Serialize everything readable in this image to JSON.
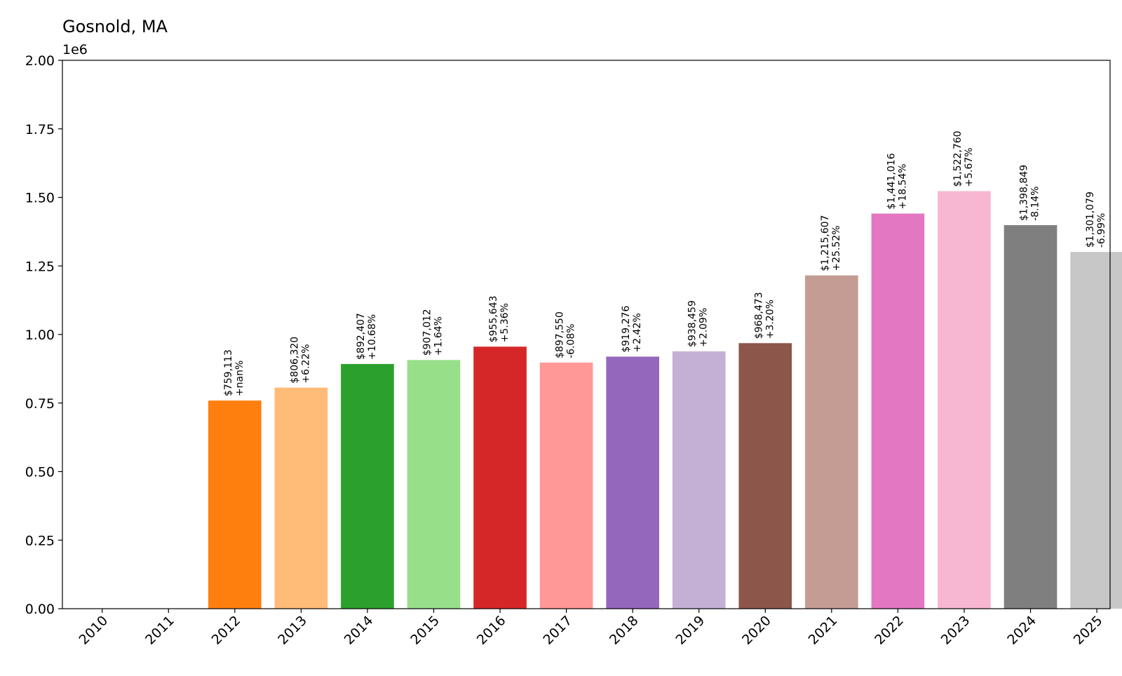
{
  "chart_data": {
    "type": "bar",
    "title": "Gosnold, MA",
    "xlabel": "",
    "ylabel": "",
    "y_offset_label": "1e6",
    "ylim": [
      0,
      2000000
    ],
    "y_ticks": [
      0,
      250000,
      500000,
      750000,
      1000000,
      1250000,
      1500000,
      1750000,
      2000000
    ],
    "y_tick_labels": [
      "0.00",
      "0.25",
      "0.50",
      "0.75",
      "1.00",
      "1.25",
      "1.50",
      "1.75",
      "2.00"
    ],
    "grid": false,
    "legend": "none",
    "categories": [
      "2010",
      "2011",
      "2012",
      "2013",
      "2014",
      "2015",
      "2016",
      "2017",
      "2018",
      "2019",
      "2020",
      "2021",
      "2022",
      "2023",
      "2024",
      "2025"
    ],
    "values": [
      0,
      0,
      759113,
      806320,
      892407,
      907012,
      955643,
      897550,
      919276,
      938459,
      968473,
      1215607,
      1441016,
      1522760,
      1398849,
      1301079
    ],
    "value_labels": [
      "",
      "",
      "$759,113",
      "$806,320",
      "$892,407",
      "$907,012",
      "$955,643",
      "$897,550",
      "$919,276",
      "$938,459",
      "$968,473",
      "$1,215,607",
      "$1,441,016",
      "$1,522,760",
      "$1,398,849",
      "$1,301,079"
    ],
    "change_labels": [
      "",
      "",
      "+nan%",
      "+6.22%",
      "+10.68%",
      "+1.64%",
      "+5.36%",
      "-6.08%",
      "+2.42%",
      "+2.09%",
      "+3.20%",
      "+25.52%",
      "+18.54%",
      "+5.67%",
      "-8.14%",
      "-6.99%"
    ],
    "colors": [
      "#1f77b4",
      "#aec7e8",
      "#ff7f0e",
      "#ffbb78",
      "#2ca02c",
      "#98df8a",
      "#d62728",
      "#ff9896",
      "#9467bd",
      "#c5b0d5",
      "#8c564b",
      "#c49c94",
      "#e377c2",
      "#f7b6d2",
      "#7f7f7f",
      "#c7c7c7"
    ]
  }
}
